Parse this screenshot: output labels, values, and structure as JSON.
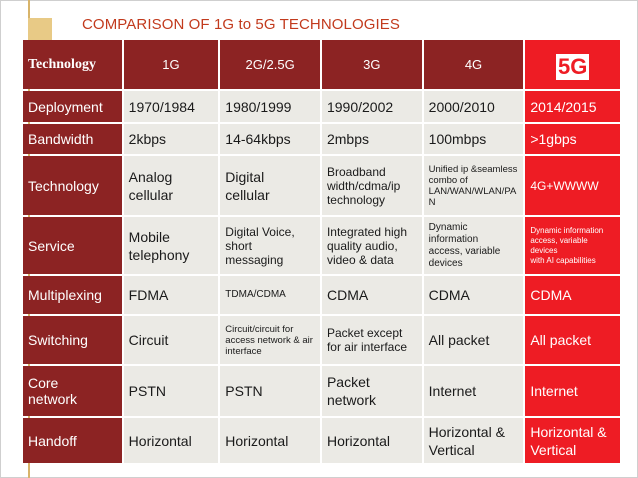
{
  "title": "COMPARISON OF 1G to 5G TECHNOLOGIES",
  "colors": {
    "header_background": "#8c2323",
    "highlight_5g": "#ee1c24",
    "cell_background": "#ebeae5",
    "title_color": "#c23a1d",
    "accent": "#e8ca86"
  },
  "table": {
    "header": {
      "label": "Technology",
      "g1": "1G",
      "g2": "2G/2.5G",
      "g3": "3G",
      "g4": "4G",
      "g5": "5G"
    },
    "rows": [
      {
        "label": "Deployment",
        "g1": "1970/1984",
        "g2": "1980/1999",
        "g3": "1990/2002",
        "g4": "2000/2010",
        "g5": "2014/2015"
      },
      {
        "label": "Bandwidth",
        "g1": "2kbps",
        "g2": "14-64kbps",
        "g3": "2mbps",
        "g4": "100mbps",
        "g5": ">1gbps"
      },
      {
        "label": "Technology",
        "g1": "Analog\ncellular",
        "g2": "Digital\ncellular",
        "g3": "Broadband\nwidth/cdma/ip\ntechnology",
        "g4": "Unified ip &seamless\ncombo of\nLAN/WAN/WLAN/PA\nN",
        "g5": "4G+WWWW"
      },
      {
        "label": "Service",
        "g1": "Mobile\ntelephony",
        "g2": "Digital Voice,\nshort\nmessaging",
        "g3": "Integrated high\nquality audio,\nvideo & data",
        "g4": "Dynamic\ninformation\naccess, variable\ndevices",
        "g5": "Dynamic information\naccess, variable\ndevices\nwith AI capabilities"
      },
      {
        "label": "Multiplexing",
        "g1": "FDMA",
        "g2": "TDMA/CDMA",
        "g3": "CDMA",
        "g4": "CDMA",
        "g5": "CDMA"
      },
      {
        "label": "Switching",
        "g1": "Circuit",
        "g2": "Circuit/circuit for\naccess network & air\ninterface",
        "g3": "Packet except\nfor air interface",
        "g4": "All packet",
        "g5": "All packet"
      },
      {
        "label": "Core\nnetwork",
        "g1": "PSTN",
        "g2": "PSTN",
        "g3": "Packet\nnetwork",
        "g4": "Internet",
        "g5": "Internet"
      },
      {
        "label": "Handoff",
        "g1": "Horizontal",
        "g2": "Horizontal",
        "g3": "Horizontal",
        "g4": "Horizontal &\nVertical",
        "g5": "Horizontal &\nVertical"
      }
    ]
  }
}
